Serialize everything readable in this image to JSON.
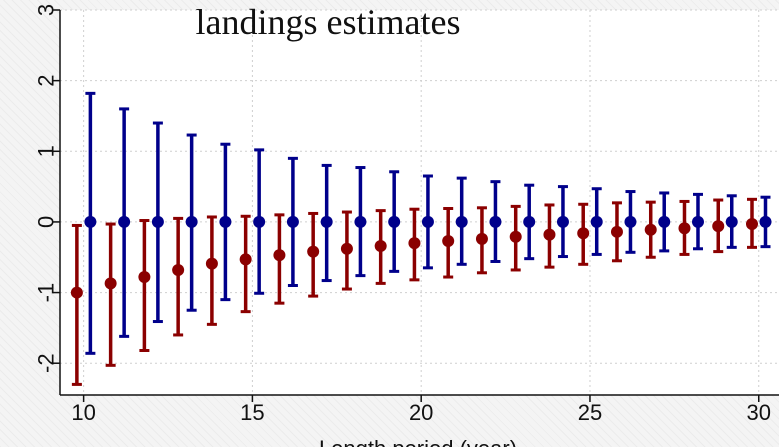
{
  "chart_data": {
    "type": "scatter",
    "title": "landings estimates",
    "xlabel": "Length period (year)",
    "ylabel": "",
    "xlim": [
      9.3,
      30.6
    ],
    "ylim": [
      -2.45,
      3.0
    ],
    "xticks": [
      10,
      15,
      20,
      25,
      30
    ],
    "yticks": [
      -2,
      -1,
      0,
      1,
      2,
      3
    ],
    "grid": true,
    "legend": "none",
    "series": [
      {
        "color": "#8b0000",
        "points": [
          {
            "x": 10,
            "y": -1.0,
            "lo": -2.3,
            "hi": -0.05
          },
          {
            "x": 11,
            "y": -0.87,
            "lo": -2.03,
            "hi": -0.03
          },
          {
            "x": 12,
            "y": -0.78,
            "lo": -1.82,
            "hi": 0.02
          },
          {
            "x": 13,
            "y": -0.68,
            "lo": -1.6,
            "hi": 0.05
          },
          {
            "x": 14,
            "y": -0.59,
            "lo": -1.45,
            "hi": 0.07
          },
          {
            "x": 15,
            "y": -0.53,
            "lo": -1.27,
            "hi": 0.08
          },
          {
            "x": 16,
            "y": -0.47,
            "lo": -1.15,
            "hi": 0.1
          },
          {
            "x": 17,
            "y": -0.42,
            "lo": -1.05,
            "hi": 0.12
          },
          {
            "x": 18,
            "y": -0.38,
            "lo": -0.95,
            "hi": 0.14
          },
          {
            "x": 19,
            "y": -0.34,
            "lo": -0.87,
            "hi": 0.16
          },
          {
            "x": 20,
            "y": -0.3,
            "lo": -0.82,
            "hi": 0.18
          },
          {
            "x": 21,
            "y": -0.27,
            "lo": -0.78,
            "hi": 0.19
          },
          {
            "x": 22,
            "y": -0.24,
            "lo": -0.72,
            "hi": 0.2
          },
          {
            "x": 23,
            "y": -0.21,
            "lo": -0.68,
            "hi": 0.22
          },
          {
            "x": 24,
            "y": -0.18,
            "lo": -0.64,
            "hi": 0.24
          },
          {
            "x": 25,
            "y": -0.16,
            "lo": -0.6,
            "hi": 0.25
          },
          {
            "x": 26,
            "y": -0.14,
            "lo": -0.55,
            "hi": 0.27
          },
          {
            "x": 27,
            "y": -0.11,
            "lo": -0.5,
            "hi": 0.28
          },
          {
            "x": 28,
            "y": -0.09,
            "lo": -0.46,
            "hi": 0.29
          },
          {
            "x": 29,
            "y": -0.06,
            "lo": -0.42,
            "hi": 0.31
          },
          {
            "x": 30,
            "y": -0.03,
            "lo": -0.36,
            "hi": 0.32
          }
        ]
      },
      {
        "color": "#00008b",
        "points": [
          {
            "x": 10,
            "y": 0.0,
            "lo": -1.86,
            "hi": 1.82
          },
          {
            "x": 11,
            "y": 0.0,
            "lo": -1.62,
            "hi": 1.6
          },
          {
            "x": 12,
            "y": 0.0,
            "lo": -1.41,
            "hi": 1.4
          },
          {
            "x": 13,
            "y": 0.0,
            "lo": -1.25,
            "hi": 1.23
          },
          {
            "x": 14,
            "y": 0.0,
            "lo": -1.1,
            "hi": 1.1
          },
          {
            "x": 15,
            "y": 0.0,
            "lo": -1.01,
            "hi": 1.02
          },
          {
            "x": 16,
            "y": 0.0,
            "lo": -0.9,
            "hi": 0.9
          },
          {
            "x": 17,
            "y": 0.0,
            "lo": -0.83,
            "hi": 0.8
          },
          {
            "x": 18,
            "y": 0.0,
            "lo": -0.76,
            "hi": 0.77
          },
          {
            "x": 19,
            "y": 0.0,
            "lo": -0.7,
            "hi": 0.71
          },
          {
            "x": 20,
            "y": 0.0,
            "lo": -0.65,
            "hi": 0.65
          },
          {
            "x": 21,
            "y": 0.0,
            "lo": -0.6,
            "hi": 0.62
          },
          {
            "x": 22,
            "y": 0.0,
            "lo": -0.56,
            "hi": 0.57
          },
          {
            "x": 23,
            "y": 0.0,
            "lo": -0.52,
            "hi": 0.52
          },
          {
            "x": 24,
            "y": 0.0,
            "lo": -0.49,
            "hi": 0.5
          },
          {
            "x": 25,
            "y": 0.0,
            "lo": -0.46,
            "hi": 0.47
          },
          {
            "x": 26,
            "y": 0.0,
            "lo": -0.43,
            "hi": 0.43
          },
          {
            "x": 27,
            "y": 0.0,
            "lo": -0.41,
            "hi": 0.41
          },
          {
            "x": 28,
            "y": 0.0,
            "lo": -0.38,
            "hi": 0.39
          },
          {
            "x": 29,
            "y": 0.0,
            "lo": -0.36,
            "hi": 0.37
          },
          {
            "x": 30,
            "y": 0.0,
            "lo": -0.35,
            "hi": 0.35
          }
        ]
      }
    ]
  }
}
